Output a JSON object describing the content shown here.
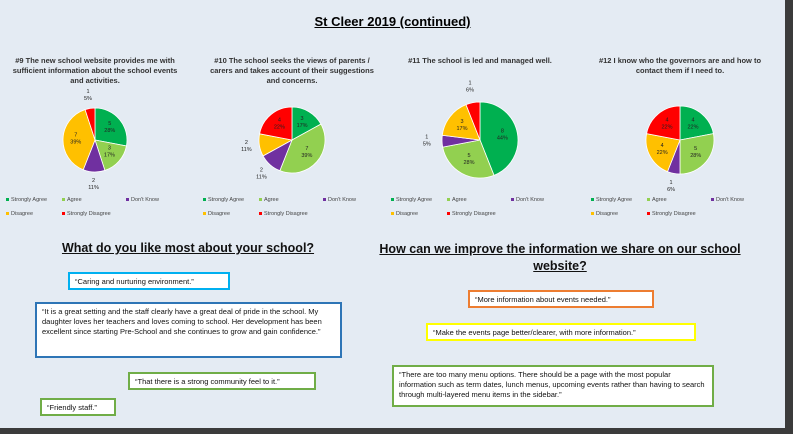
{
  "heading": "St Cleer 2019 (continued)",
  "chart_data": [
    {
      "type": "pie",
      "title": "#9 The new school website provides me with sufficient information about the school events and activities.",
      "categories": [
        "Strongly Agree",
        "Agree",
        "Don't Know",
        "Disagree",
        "Strongly Disagree"
      ],
      "colors": [
        "#00b050",
        "#92d050",
        "#7030a0",
        "#ffc000",
        "#ff0000"
      ],
      "counts": [
        5,
        3,
        2,
        7,
        1
      ],
      "values": [
        28,
        17,
        11,
        39,
        5
      ],
      "value_labels": [
        "28%",
        "17%",
        "11%",
        "39%",
        "5%"
      ]
    },
    {
      "type": "pie",
      "title": "#10 The school seeks the views of parents / carers and takes account of their suggestions and concerns.",
      "categories": [
        "Strongly Agree",
        "Agree",
        "Don't Know",
        "Disagree",
        "Strongly Disagree"
      ],
      "colors": [
        "#00b050",
        "#92d050",
        "#7030a0",
        "#ffc000",
        "#ff0000"
      ],
      "counts": [
        3,
        7,
        2,
        2,
        4
      ],
      "values": [
        17,
        39,
        11,
        11,
        22
      ],
      "value_labels": [
        "17%",
        "39%",
        "11%",
        "11%",
        "22%"
      ]
    },
    {
      "type": "pie",
      "title": "#11 The school is led and managed well.",
      "categories": [
        "Strongly Agree",
        "Agree",
        "Don't Know",
        "Disagree",
        "Strongly Disagree"
      ],
      "colors": [
        "#00b050",
        "#92d050",
        "#7030a0",
        "#ffc000",
        "#ff0000"
      ],
      "counts": [
        8,
        5,
        1,
        3,
        1
      ],
      "values": [
        44,
        28,
        5,
        17,
        6
      ],
      "value_labels": [
        "44%",
        "28%",
        "5%",
        "17%",
        "6%"
      ]
    },
    {
      "type": "pie",
      "title": "#12 I know who the governors are and how to contact them if I need to.",
      "categories": [
        "Strongly Agree",
        "Agree",
        "Don't Know",
        "Disagree",
        "Strongly Disagree"
      ],
      "colors": [
        "#00b050",
        "#92d050",
        "#7030a0",
        "#ffc000",
        "#ff0000"
      ],
      "counts": [
        4,
        5,
        1,
        4,
        4
      ],
      "values": [
        22,
        28,
        6,
        22,
        22
      ],
      "value_labels": [
        "22%",
        "28%",
        "6%",
        "22%",
        "22%"
      ]
    }
  ],
  "left": {
    "question": "What do you like most about your school?",
    "quotes": [
      "“Caring and nurturing environment.”",
      "“It is a great setting and the staff clearly have a great deal of pride in the school. My daughter loves her teachers and loves coming to school. Her development has been excellent since starting Pre-School and she continues to grow and gain confidence.”",
      "“That there is a strong community feel to it.”",
      "“Friendly staff.”"
    ]
  },
  "right": {
    "question": "How can we improve the information we share on our school website?",
    "quotes": [
      "“More information about events needed.”",
      "“Make the events page better/clearer, with more information.”",
      "“There are too many menu options. There should be a page with the most popular information such as term dates, lunch menus, upcoming events rather than having to search through multi-layered menu items in the sidebar.”"
    ]
  }
}
